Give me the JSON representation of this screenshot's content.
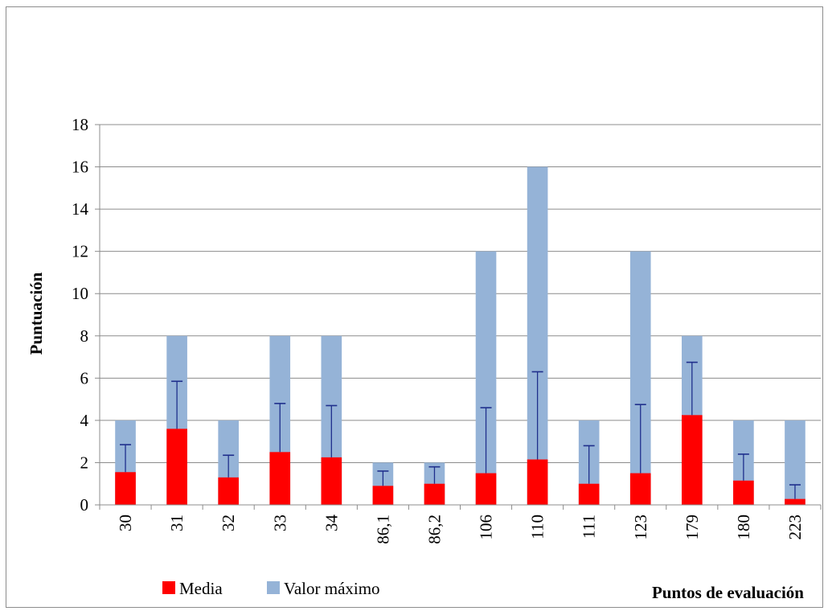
{
  "chart_data": {
    "type": "bar",
    "stacking": "overlay",
    "title": "",
    "xlabel": "Puntos de evaluación",
    "ylabel": "Puntuación",
    "ylim": [
      0,
      18
    ],
    "yticks": [
      "0",
      "2",
      "4",
      "6",
      "8",
      "10",
      "12",
      "14",
      "16",
      "18"
    ],
    "grid": true,
    "legend_position": "bottom-left",
    "categories": [
      "30",
      "31",
      "32",
      "33",
      "34",
      "86,1",
      "86,2",
      "106",
      "110",
      "111",
      "123",
      "179",
      "180",
      "223"
    ],
    "series": [
      {
        "name": "Valor máximo",
        "color": "#95b3d7",
        "values": [
          4,
          8,
          4,
          8,
          8,
          2,
          2,
          12,
          16,
          4,
          12,
          8,
          4,
          4
        ]
      },
      {
        "name": "Media",
        "color": "#ff0000",
        "values": [
          1.55,
          3.6,
          1.3,
          2.5,
          2.25,
          0.9,
          1.0,
          1.5,
          2.15,
          1.0,
          1.5,
          4.25,
          1.15,
          0.28
        ],
        "error_upper": [
          2.85,
          5.85,
          2.35,
          4.8,
          4.7,
          1.6,
          1.8,
          4.6,
          6.3,
          2.8,
          4.75,
          6.75,
          2.4,
          0.95
        ]
      }
    ],
    "error_bar_color": "#1f2f8c"
  }
}
